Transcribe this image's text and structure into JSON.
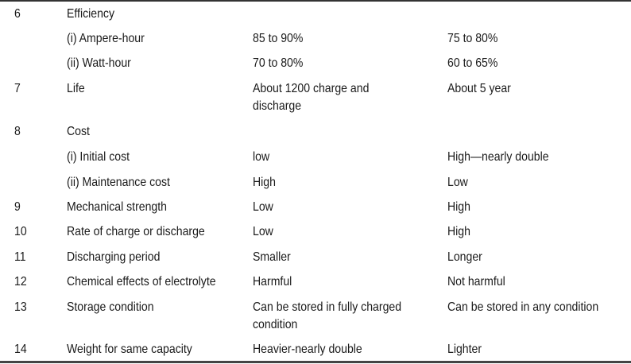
{
  "rows": [
    {
      "no": "6",
      "item": "Efficiency",
      "a": "",
      "b": ""
    },
    {
      "no": "",
      "item": " (i)  Ampere-hour",
      "a": "85 to 90%",
      "b": "75 to 80%"
    },
    {
      "no": "",
      "item": "(ii)  Watt-hour",
      "a": "70 to 80%",
      "b": "60 to 65%"
    },
    {
      "no": "7",
      "item": "Life",
      "a": "About 1200 charge and",
      "a2": "discharge",
      "b": "About 5 year"
    },
    {
      "no": "8",
      "item": "Cost",
      "a": "",
      "b": ""
    },
    {
      "no": "",
      "item": "(i) Initial cost",
      "a": "low",
      "b": "High—nearly double"
    },
    {
      "no": "",
      "item": "(ii) Maintenance cost",
      "a": "High",
      "b": "Low"
    },
    {
      "no": "9",
      "item": "Mechanical strength",
      "a": "Low",
      "b": "High"
    },
    {
      "no": "10",
      "item": "Rate of charge or discharge",
      "a": "Low",
      "b": "High"
    },
    {
      "no": "11",
      "item": "Discharging period",
      "a": "Smaller",
      "b": "Longer"
    },
    {
      "no": "12",
      "item": "Chemical effects of electrolyte",
      "a": "Harmful",
      "b": "Not harmful"
    },
    {
      "no": "13",
      "item": "Storage condition",
      "a": "Can be stored in fully charged",
      "a2": "condition",
      "b": "Can be stored in any condition"
    },
    {
      "no": "14",
      "item": "Weight for same capacity",
      "a": "Heavier-nearly double",
      "b": "Lighter"
    }
  ]
}
